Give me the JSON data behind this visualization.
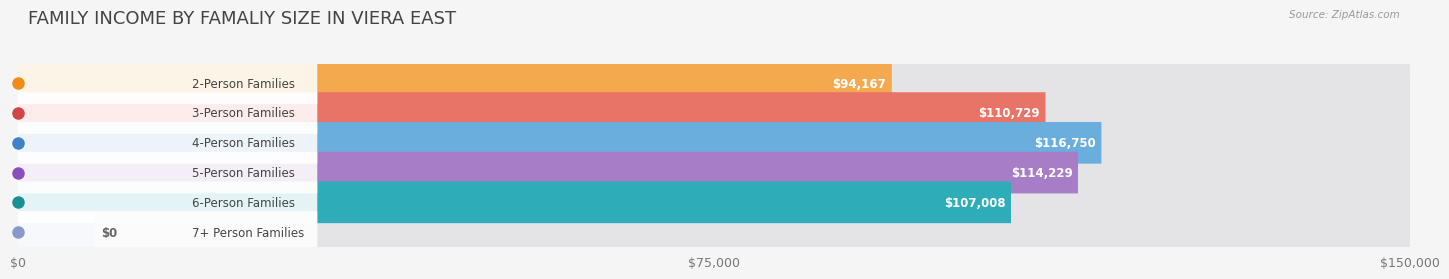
{
  "title": "FAMILY INCOME BY FAMALIY SIZE IN VIERA EAST",
  "source": "Source: ZipAtlas.com",
  "categories": [
    "2-Person Families",
    "3-Person Families",
    "4-Person Families",
    "5-Person Families",
    "6-Person Families",
    "7+ Person Families"
  ],
  "values": [
    94167,
    110729,
    116750,
    114229,
    107008,
    0
  ],
  "bar_colors": [
    "#F5A94E",
    "#E87367",
    "#6AAEDD",
    "#A87DC8",
    "#2EADB8",
    "#B8C9EA"
  ],
  "dot_colors": [
    "#EF8C1A",
    "#D04545",
    "#4080C8",
    "#8850BB",
    "#1A9090",
    "#8899CC"
  ],
  "xlim": [
    0,
    150000
  ],
  "xtick_labels": [
    "$0",
    "$75,000",
    "$150,000"
  ],
  "xtick_vals": [
    0,
    75000,
    150000
  ],
  "value_labels": [
    "$94,167",
    "$110,729",
    "$116,750",
    "$114,229",
    "$107,008",
    "$0"
  ],
  "background_color": "#f5f5f5",
  "bar_bg_color": "#e4e4e6",
  "title_color": "#444444",
  "title_fontsize": 13,
  "label_fontsize": 8.5,
  "value_fontsize": 8.5
}
